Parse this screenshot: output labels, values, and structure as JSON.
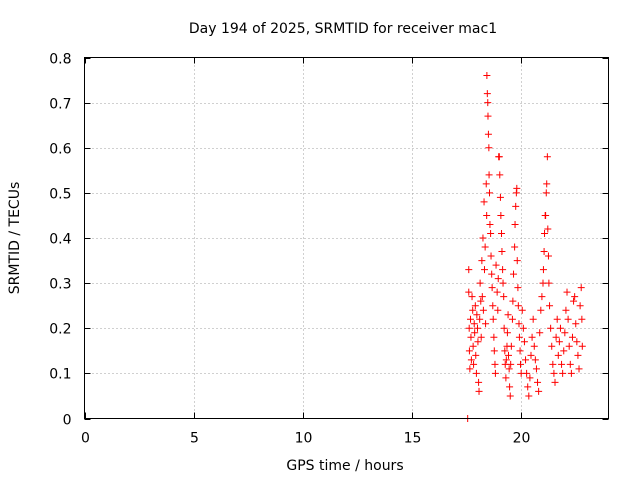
{
  "chart_data": {
    "type": "scatter",
    "title": "Day 194 of 2025, SRMTID for receiver mac1",
    "xlabel": "GPS time / hours",
    "ylabel": "SRMTID / TECUs",
    "xlim": [
      0,
      24
    ],
    "ylim": [
      0,
      0.8
    ],
    "xticks": [
      0,
      5,
      10,
      15,
      20
    ],
    "yticks": [
      0,
      0.1,
      0.2,
      0.3,
      0.4,
      0.5,
      0.6,
      0.7,
      0.8
    ],
    "grid": true,
    "marker": "plus",
    "color": "#ff0000",
    "series": [
      {
        "name": "mac1",
        "points": [
          [
            17.55,
            0.0
          ],
          [
            17.6,
            0.33
          ],
          [
            17.6,
            0.28
          ],
          [
            17.62,
            0.2
          ],
          [
            17.63,
            0.15
          ],
          [
            17.65,
            0.11
          ],
          [
            17.68,
            0.22
          ],
          [
            17.7,
            0.18
          ],
          [
            17.72,
            0.13
          ],
          [
            17.75,
            0.27
          ],
          [
            17.78,
            0.24
          ],
          [
            17.8,
            0.16
          ],
          [
            17.82,
            0.12
          ],
          [
            17.85,
            0.21
          ],
          [
            17.87,
            0.19
          ],
          [
            17.9,
            0.25
          ],
          [
            17.92,
            0.14
          ],
          [
            17.95,
            0.1
          ],
          [
            17.97,
            0.23
          ],
          [
            18.0,
            0.2
          ],
          [
            18.02,
            0.17
          ],
          [
            18.05,
            0.08
          ],
          [
            18.07,
            0.06
          ],
          [
            18.1,
            0.22
          ],
          [
            18.12,
            0.3
          ],
          [
            18.15,
            0.26
          ],
          [
            18.17,
            0.18
          ],
          [
            18.2,
            0.35
          ],
          [
            18.22,
            0.27
          ],
          [
            18.25,
            0.4
          ],
          [
            18.27,
            0.24
          ],
          [
            18.3,
            0.48
          ],
          [
            18.32,
            0.33
          ],
          [
            18.35,
            0.38
          ],
          [
            18.37,
            0.21
          ],
          [
            18.4,
            0.52
          ],
          [
            18.42,
            0.45
          ],
          [
            18.43,
            0.76
          ],
          [
            18.45,
            0.72
          ],
          [
            18.47,
            0.7
          ],
          [
            18.48,
            0.67
          ],
          [
            18.5,
            0.63
          ],
          [
            18.52,
            0.6
          ],
          [
            18.53,
            0.54
          ],
          [
            18.55,
            0.5
          ],
          [
            18.57,
            0.43
          ],
          [
            18.6,
            0.41
          ],
          [
            18.62,
            0.36
          ],
          [
            18.65,
            0.32
          ],
          [
            18.67,
            0.29
          ],
          [
            18.7,
            0.25
          ],
          [
            18.72,
            0.22
          ],
          [
            18.75,
            0.18
          ],
          [
            18.77,
            0.15
          ],
          [
            18.8,
            0.12
          ],
          [
            18.82,
            0.1
          ],
          [
            18.85,
            0.34
          ],
          [
            18.9,
            0.28
          ],
          [
            18.93,
            0.24
          ],
          [
            18.95,
            0.31
          ],
          [
            18.97,
            0.58
          ],
          [
            19.0,
            0.58
          ],
          [
            19.02,
            0.54
          ],
          [
            19.05,
            0.49
          ],
          [
            19.07,
            0.45
          ],
          [
            19.1,
            0.41
          ],
          [
            19.12,
            0.37
          ],
          [
            19.15,
            0.33
          ],
          [
            19.17,
            0.3
          ],
          [
            19.2,
            0.27
          ],
          [
            19.22,
            0.2
          ],
          [
            19.25,
            0.15
          ],
          [
            19.27,
            0.12
          ],
          [
            19.3,
            0.09
          ],
          [
            19.32,
            0.13
          ],
          [
            19.35,
            0.16
          ],
          [
            19.37,
            0.19
          ],
          [
            19.4,
            0.23
          ],
          [
            19.42,
            0.14
          ],
          [
            19.45,
            0.11
          ],
          [
            19.47,
            0.07
          ],
          [
            19.5,
            0.05
          ],
          [
            19.52,
            0.12
          ],
          [
            19.55,
            0.16
          ],
          [
            19.6,
            0.22
          ],
          [
            19.62,
            0.26
          ],
          [
            19.65,
            0.32
          ],
          [
            19.7,
            0.38
          ],
          [
            19.72,
            0.43
          ],
          [
            19.75,
            0.47
          ],
          [
            19.78,
            0.5
          ],
          [
            19.8,
            0.51
          ],
          [
            19.82,
            0.35
          ],
          [
            19.85,
            0.29
          ],
          [
            19.87,
            0.25
          ],
          [
            19.9,
            0.21
          ],
          [
            19.92,
            0.18
          ],
          [
            19.95,
            0.15
          ],
          [
            19.97,
            0.12
          ],
          [
            20.0,
            0.1
          ],
          [
            20.05,
            0.24
          ],
          [
            20.1,
            0.2
          ],
          [
            20.15,
            0.17
          ],
          [
            20.2,
            0.13
          ],
          [
            20.25,
            0.1
          ],
          [
            20.3,
            0.07
          ],
          [
            20.35,
            0.05
          ],
          [
            20.4,
            0.09
          ],
          [
            20.45,
            0.14
          ],
          [
            20.5,
            0.18
          ],
          [
            20.55,
            0.22
          ],
          [
            20.6,
            0.16
          ],
          [
            20.65,
            0.13
          ],
          [
            20.7,
            0.11
          ],
          [
            20.75,
            0.08
          ],
          [
            20.8,
            0.06
          ],
          [
            20.85,
            0.19
          ],
          [
            20.9,
            0.24
          ],
          [
            20.95,
            0.27
          ],
          [
            21.0,
            0.3
          ],
          [
            21.02,
            0.33
          ],
          [
            21.05,
            0.37
          ],
          [
            21.07,
            0.41
          ],
          [
            21.1,
            0.45
          ],
          [
            21.12,
            0.45
          ],
          [
            21.15,
            0.5
          ],
          [
            21.17,
            0.52
          ],
          [
            21.2,
            0.58
          ],
          [
            21.22,
            0.42
          ],
          [
            21.25,
            0.36
          ],
          [
            21.27,
            0.3
          ],
          [
            21.3,
            0.25
          ],
          [
            21.35,
            0.2
          ],
          [
            21.4,
            0.16
          ],
          [
            21.45,
            0.12
          ],
          [
            21.5,
            0.1
          ],
          [
            21.55,
            0.08
          ],
          [
            21.6,
            0.18
          ],
          [
            21.65,
            0.22
          ],
          [
            21.7,
            0.14
          ],
          [
            21.75,
            0.17
          ],
          [
            21.8,
            0.2
          ],
          [
            21.85,
            0.12
          ],
          [
            21.9,
            0.1
          ],
          [
            21.95,
            0.15
          ],
          [
            22.0,
            0.19
          ],
          [
            22.05,
            0.24
          ],
          [
            22.1,
            0.28
          ],
          [
            22.15,
            0.22
          ],
          [
            22.2,
            0.16
          ],
          [
            22.25,
            0.12
          ],
          [
            22.3,
            0.1
          ],
          [
            22.35,
            0.18
          ],
          [
            22.4,
            0.26
          ],
          [
            22.45,
            0.27
          ],
          [
            22.5,
            0.21
          ],
          [
            22.55,
            0.17
          ],
          [
            22.6,
            0.14
          ],
          [
            22.65,
            0.11
          ],
          [
            22.7,
            0.25
          ],
          [
            22.75,
            0.29
          ],
          [
            22.78,
            0.22
          ],
          [
            22.8,
            0.16
          ]
        ]
      }
    ]
  }
}
